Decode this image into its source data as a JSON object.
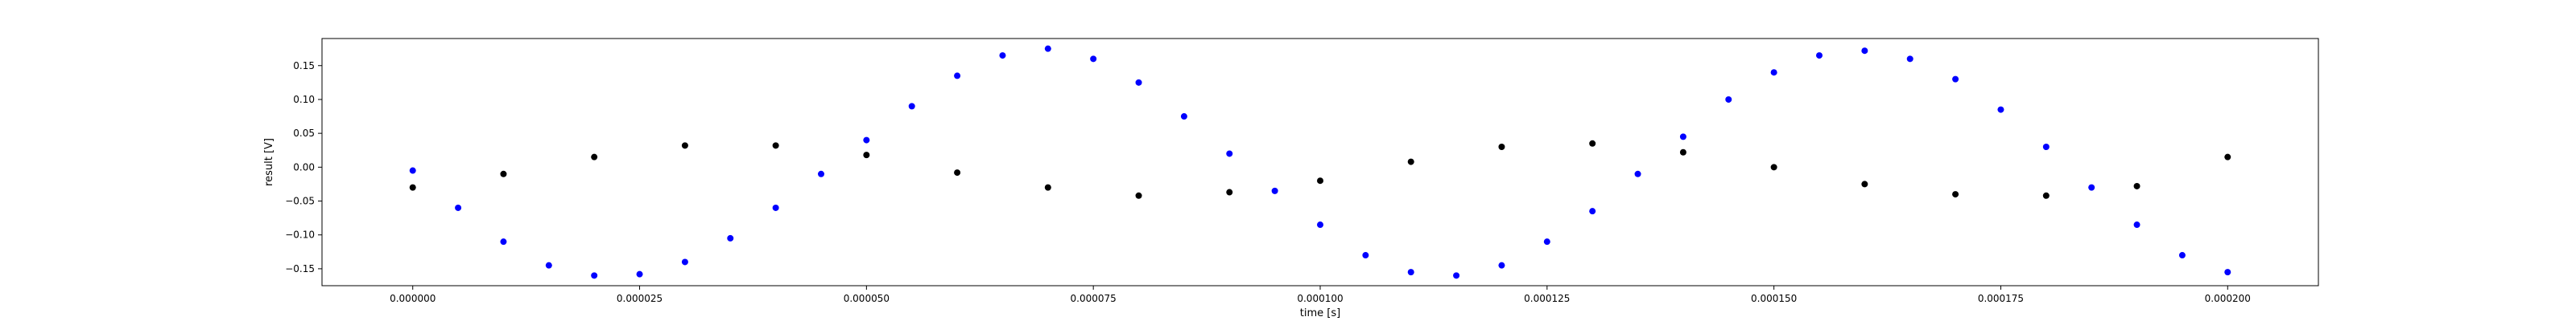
{
  "chart_data": {
    "type": "scatter",
    "title": "",
    "xlabel": "time [s]",
    "ylabel": "result [V]",
    "xlim": [
      -1e-05,
      0.00021
    ],
    "ylim": [
      -0.175,
      0.19
    ],
    "grid": false,
    "x_ticks": [
      0.0,
      2.5e-05,
      5e-05,
      7.5e-05,
      0.0001,
      0.000125,
      0.00015,
      0.000175,
      0.0002
    ],
    "x_tick_labels": [
      "0.000000",
      "0.000025",
      "0.000050",
      "0.000075",
      "0.000100",
      "0.000125",
      "0.000150",
      "0.000175",
      "0.000200"
    ],
    "y_ticks": [
      -0.15,
      -0.1,
      -0.05,
      0.0,
      0.05,
      0.1,
      0.15
    ],
    "y_tick_labels": [
      "−0.15",
      "−0.10",
      "−0.05",
      "0.00",
      "0.05",
      "0.10",
      "0.15"
    ],
    "series": [
      {
        "color": "#0000ff",
        "x": [
          0.0,
          5e-06,
          1e-05,
          1.5e-05,
          2e-05,
          2.5e-05,
          3e-05,
          3.5e-05,
          4e-05,
          4.5e-05,
          5e-05,
          5.5e-05,
          6e-05,
          6.5e-05,
          7e-05,
          7.5e-05,
          8e-05,
          8.5e-05,
          9e-05,
          9.5e-05,
          0.0001,
          0.000105,
          0.00011,
          0.000115,
          0.00012,
          0.000125,
          0.00013,
          0.000135,
          0.00014,
          0.000145,
          0.00015,
          0.000155,
          0.00016,
          0.000165,
          0.00017,
          0.000175,
          0.00018,
          0.000185,
          0.00019,
          0.000195,
          0.0002
        ],
        "y": [
          -0.005,
          -0.06,
          -0.11,
          -0.145,
          -0.16,
          -0.158,
          -0.14,
          -0.105,
          -0.06,
          -0.01,
          0.04,
          0.09,
          0.135,
          0.165,
          0.175,
          0.16,
          0.125,
          0.075,
          0.02,
          -0.035,
          -0.085,
          -0.13,
          -0.155,
          -0.16,
          -0.145,
          -0.11,
          -0.065,
          -0.01,
          0.045,
          0.1,
          0.14,
          0.165,
          0.172,
          0.16,
          0.13,
          0.085,
          0.03,
          -0.03,
          -0.085,
          -0.13,
          -0.155
        ]
      },
      {
        "color": "#000000",
        "x": [
          0.0,
          1e-05,
          2e-05,
          3e-05,
          4e-05,
          5e-05,
          6e-05,
          7e-05,
          8e-05,
          9e-05,
          0.0001,
          0.00011,
          0.00012,
          0.00013,
          0.00014,
          0.00015,
          0.00016,
          0.00017,
          0.00018,
          0.00019,
          0.0002
        ],
        "y": [
          -0.03,
          -0.01,
          0.015,
          0.032,
          0.032,
          0.018,
          -0.008,
          -0.03,
          -0.042,
          -0.037,
          -0.02,
          0.008,
          0.03,
          0.035,
          0.022,
          0.0,
          -0.025,
          -0.04,
          -0.042,
          -0.028,
          0.015
        ]
      }
    ]
  }
}
